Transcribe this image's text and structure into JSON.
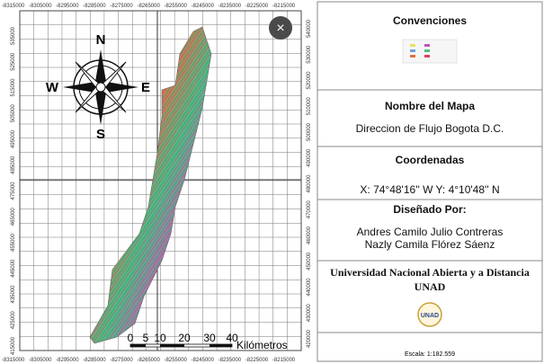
{
  "map": {
    "top_axis": [
      "-8315000",
      "-8305000",
      "-8295000",
      "-8285000",
      "-8275000",
      "-8265000",
      "-8255000",
      "-8245000",
      "-8235000",
      "-8225000",
      "-8215000"
    ],
    "bottom_axis": [
      "-8315000",
      "-8305000",
      "-8295000",
      "-8285000",
      "-8275000",
      "-8265000",
      "-8255000",
      "-8245000",
      "-8235000",
      "-8225000",
      "-8215000"
    ],
    "left_axis": [
      "535000",
      "525000",
      "515000",
      "505000",
      "495000",
      "485000",
      "475000",
      "465000",
      "455000",
      "445000",
      "435000",
      "425000",
      "415000"
    ],
    "right_axis": [
      "540000",
      "530000",
      "520000",
      "510000",
      "500000",
      "490000",
      "480000",
      "470000",
      "460000",
      "450000",
      "440000",
      "430000",
      "420000"
    ],
    "compass": {
      "north": "N",
      "south": "S",
      "east": "E",
      "west": "W"
    },
    "scale_bar": {
      "ticks": [
        "0",
        "5",
        "10",
        "20",
        "30",
        "40"
      ],
      "unit": "Kilómetros"
    },
    "close_button": "×"
  },
  "panel": {
    "legend_title": "Convenciones",
    "map_name_title": "Nombre del Mapa",
    "map_name": "Direccion de Flujo Bogota D.C.",
    "coordinates_title": "Coordenadas",
    "coordinates": "X: 74°48'16'' W  Y: 4°10'48'' N",
    "designed_by_title": "Diseñado Por:",
    "authors": [
      "Andres Camilo Julio Contreras",
      "Nazly Camila Flórez Sáenz"
    ],
    "university": [
      "Universidad Nacional Abierta y a Distancia",
      "UNAD"
    ],
    "logo": "UNAD",
    "scale": "Escala: 1:182.559"
  }
}
